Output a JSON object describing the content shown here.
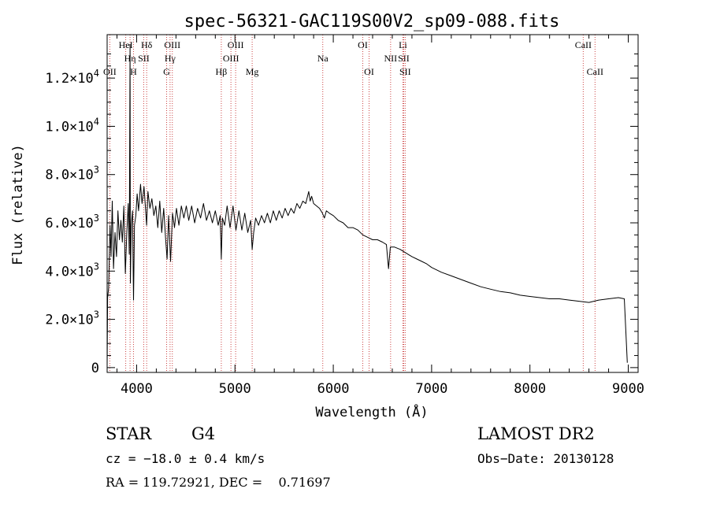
{
  "chart_data": {
    "type": "line",
    "title": "spec-56321-GAC119S00V2_sp09-088.fits",
    "xlabel": "Wavelength (Å)",
    "ylabel": "Flux (relative)",
    "xlim": [
      3700,
      9100
    ],
    "ylim": [
      -200,
      13800
    ],
    "x_ticks": [
      4000,
      5000,
      6000,
      7000,
      8000,
      9000
    ],
    "x_tick_labels": [
      "4000",
      "5000",
      "6000",
      "7000",
      "8000",
      "9000"
    ],
    "y_ticks": [
      {
        "value": 0,
        "mant": "0",
        "exp": ""
      },
      {
        "value": 2000,
        "mant": "2.0×10",
        "exp": "3"
      },
      {
        "value": 4000,
        "mant": "4.0×10",
        "exp": "3"
      },
      {
        "value": 6000,
        "mant": "6.0×10",
        "exp": "3"
      },
      {
        "value": 8000,
        "mant": "8.0×10",
        "exp": "3"
      },
      {
        "value": 10000,
        "mant": "1.0×10",
        "exp": "4"
      },
      {
        "value": 12000,
        "mant": "1.2×10",
        "exp": "4"
      }
    ],
    "spectrum": {
      "color": "#000000",
      "points": [
        [
          3700,
          0
        ],
        [
          3705,
          2900
        ],
        [
          3715,
          3300
        ],
        [
          3730,
          5900
        ],
        [
          3740,
          4600
        ],
        [
          3752,
          6900
        ],
        [
          3765,
          4100
        ],
        [
          3780,
          5600
        ],
        [
          3795,
          4600
        ],
        [
          3810,
          6500
        ],
        [
          3825,
          5300
        ],
        [
          3840,
          6100
        ],
        [
          3855,
          5200
        ],
        [
          3870,
          6700
        ],
        [
          3885,
          3900
        ],
        [
          3900,
          5600
        ],
        [
          3915,
          6800
        ],
        [
          3925,
          4700
        ],
        [
          3933,
          13400
        ],
        [
          3936,
          3500
        ],
        [
          3945,
          5900
        ],
        [
          3958,
          6500
        ],
        [
          3968,
          2800
        ],
        [
          3978,
          5900
        ],
        [
          3992,
          6300
        ],
        [
          4005,
          7200
        ],
        [
          4020,
          6500
        ],
        [
          4040,
          7600
        ],
        [
          4055,
          6800
        ],
        [
          4075,
          7500
        ],
        [
          4090,
          6600
        ],
        [
          4101,
          5900
        ],
        [
          4115,
          7300
        ],
        [
          4135,
          6600
        ],
        [
          4155,
          7000
        ],
        [
          4175,
          6300
        ],
        [
          4195,
          6700
        ],
        [
          4215,
          5800
        ],
        [
          4235,
          6900
        ],
        [
          4255,
          5600
        ],
        [
          4275,
          6600
        ],
        [
          4295,
          5300
        ],
        [
          4310,
          4500
        ],
        [
          4325,
          6300
        ],
        [
          4345,
          4400
        ],
        [
          4365,
          6400
        ],
        [
          4385,
          5800
        ],
        [
          4405,
          6600
        ],
        [
          4430,
          5900
        ],
        [
          4455,
          6700
        ],
        [
          4480,
          6200
        ],
        [
          4505,
          6700
        ],
        [
          4530,
          6100
        ],
        [
          4560,
          6700
        ],
        [
          4590,
          6000
        ],
        [
          4620,
          6600
        ],
        [
          4650,
          6200
        ],
        [
          4680,
          6800
        ],
        [
          4710,
          6100
        ],
        [
          4740,
          6500
        ],
        [
          4770,
          6000
        ],
        [
          4800,
          6500
        ],
        [
          4830,
          5900
        ],
        [
          4850,
          6300
        ],
        [
          4861,
          4500
        ],
        [
          4872,
          6200
        ],
        [
          4895,
          5900
        ],
        [
          4920,
          6700
        ],
        [
          4950,
          5800
        ],
        [
          4980,
          6700
        ],
        [
          5010,
          5700
        ],
        [
          5040,
          6500
        ],
        [
          5070,
          5700
        ],
        [
          5100,
          6400
        ],
        [
          5130,
          5600
        ],
        [
          5160,
          6100
        ],
        [
          5175,
          4900
        ],
        [
          5190,
          5600
        ],
        [
          5210,
          6200
        ],
        [
          5240,
          5900
        ],
        [
          5270,
          6300
        ],
        [
          5300,
          6000
        ],
        [
          5330,
          6400
        ],
        [
          5360,
          6000
        ],
        [
          5390,
          6500
        ],
        [
          5420,
          6100
        ],
        [
          5450,
          6500
        ],
        [
          5480,
          6200
        ],
        [
          5510,
          6600
        ],
        [
          5540,
          6300
        ],
        [
          5570,
          6600
        ],
        [
          5600,
          6400
        ],
        [
          5630,
          6800
        ],
        [
          5660,
          6600
        ],
        [
          5690,
          6900
        ],
        [
          5720,
          6800
        ],
        [
          5750,
          7300
        ],
        [
          5765,
          6900
        ],
        [
          5780,
          7100
        ],
        [
          5800,
          6800
        ],
        [
          5830,
          6700
        ],
        [
          5860,
          6600
        ],
        [
          5890,
          6400
        ],
        [
          5910,
          6200
        ],
        [
          5930,
          6500
        ],
        [
          5960,
          6400
        ],
        [
          6000,
          6300
        ],
        [
          6050,
          6100
        ],
        [
          6100,
          6000
        ],
        [
          6150,
          5800
        ],
        [
          6200,
          5800
        ],
        [
          6250,
          5700
        ],
        [
          6300,
          5500
        ],
        [
          6350,
          5400
        ],
        [
          6400,
          5300
        ],
        [
          6450,
          5300
        ],
        [
          6500,
          5200
        ],
        [
          6540,
          5100
        ],
        [
          6562,
          4100
        ],
        [
          6580,
          5000
        ],
        [
          6620,
          5000
        ],
        [
          6680,
          4900
        ],
        [
          6720,
          4800
        ],
        [
          6760,
          4700
        ],
        [
          6800,
          4600
        ],
        [
          6850,
          4500
        ],
        [
          6900,
          4400
        ],
        [
          6950,
          4300
        ],
        [
          7000,
          4150
        ],
        [
          7100,
          3950
        ],
        [
          7200,
          3800
        ],
        [
          7300,
          3650
        ],
        [
          7400,
          3500
        ],
        [
          7500,
          3350
        ],
        [
          7600,
          3250
        ],
        [
          7700,
          3150
        ],
        [
          7800,
          3100
        ],
        [
          7900,
          3000
        ],
        [
          8000,
          2950
        ],
        [
          8100,
          2900
        ],
        [
          8200,
          2850
        ],
        [
          8300,
          2850
        ],
        [
          8400,
          2800
        ],
        [
          8500,
          2750
        ],
        [
          8600,
          2700
        ],
        [
          8700,
          2800
        ],
        [
          8800,
          2850
        ],
        [
          8900,
          2900
        ],
        [
          8960,
          2850
        ],
        [
          8990,
          200
        ]
      ]
    },
    "lines": [
      {
        "wavelength": 3727,
        "label": "OII",
        "row": 3,
        "color": "#cc4444"
      },
      {
        "wavelength": 3889,
        "label": "HeI",
        "row": 1,
        "color": "#cc4444"
      },
      {
        "wavelength": 3933,
        "label": "Hη",
        "row": 2,
        "color": "#cc4444"
      },
      {
        "wavelength": 3968,
        "label": "H",
        "row": 3,
        "color": "#cc4444"
      },
      {
        "wavelength": 4072,
        "label": "SII",
        "row": 2,
        "color": "#cc4444"
      },
      {
        "wavelength": 4102,
        "label": "Hδ",
        "row": 1,
        "color": "#cc4444"
      },
      {
        "wavelength": 4305,
        "label": "G",
        "row": 3,
        "color": "#cc4444"
      },
      {
        "wavelength": 4340,
        "label": "Hγ",
        "row": 2,
        "color": "#cc4444"
      },
      {
        "wavelength": 4363,
        "label": "OIII",
        "row": 1,
        "color": "#cc4444"
      },
      {
        "wavelength": 4861,
        "label": "Hβ",
        "row": 3,
        "color": "#cc4444"
      },
      {
        "wavelength": 4959,
        "label": "OIII",
        "row": 2,
        "color": "#cc4444"
      },
      {
        "wavelength": 5007,
        "label": "OIII",
        "row": 1,
        "color": "#cc4444"
      },
      {
        "wavelength": 5175,
        "label": "Mg",
        "row": 3,
        "color": "#cc4444"
      },
      {
        "wavelength": 5893,
        "label": "Na",
        "row": 2,
        "color": "#cc4444"
      },
      {
        "wavelength": 6300,
        "label": "OI",
        "row": 1,
        "color": "#cc4444"
      },
      {
        "wavelength": 6364,
        "label": "OI",
        "row": 3,
        "color": "#cc4444"
      },
      {
        "wavelength": 6583,
        "label": "NII",
        "row": 2,
        "color": "#cc4444"
      },
      {
        "wavelength": 6708,
        "label": "Li",
        "row": 1,
        "color": "#cc4444"
      },
      {
        "wavelength": 6716,
        "label": "SII",
        "row": 2,
        "color": "#cc4444"
      },
      {
        "wavelength": 6731,
        "label": "SII",
        "row": 3,
        "color": "#cc4444"
      },
      {
        "wavelength": 8542,
        "label": "CaII",
        "row": 1,
        "color": "#cc4444"
      },
      {
        "wavelength": 8662,
        "label": "CaII",
        "row": 3,
        "color": "#cc4444"
      }
    ],
    "grid": false,
    "legend": "none"
  },
  "info": {
    "class_label": "STAR",
    "subclass": "G4",
    "survey": "LAMOST DR2",
    "redshift": "cz = −18.0 ± 0.4 km/s",
    "obs_date": "Obs−Date: 20130128",
    "coords": "RA = 119.72921, DEC =    0.71697"
  }
}
